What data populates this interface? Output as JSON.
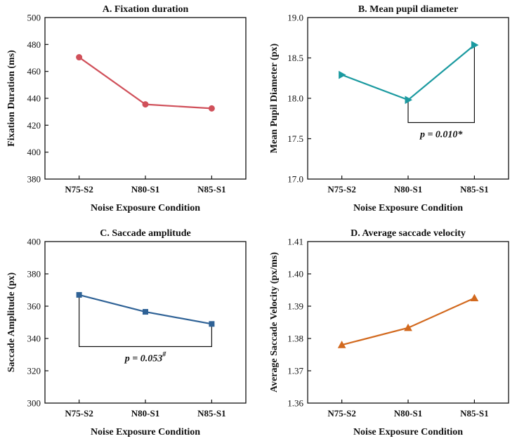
{
  "figure": {
    "xlabel": "Noise Exposure Condition"
  },
  "chart_data": [
    {
      "id": "A",
      "type": "line",
      "title": "A. Fixation duration",
      "xlabel": "Noise Exposure Condition",
      "ylabel": "Fixation Duration (ms)",
      "categories": [
        "N75-S2",
        "N80-S1",
        "N85-S1"
      ],
      "values": [
        470.5,
        435.5,
        432.5
      ],
      "ylim": [
        380,
        500
      ],
      "yticks": [
        "380",
        "400",
        "420",
        "440",
        "460",
        "480",
        "500"
      ],
      "color": "#d0505a",
      "marker": "circle",
      "annotation": null
    },
    {
      "id": "B",
      "type": "line",
      "title": "B. Mean pupil diameter",
      "xlabel": "Noise Exposure Condition",
      "ylabel": "Mean Pupil Diameter (px)",
      "categories": [
        "N75-S2",
        "N80-S1",
        "N85-S1"
      ],
      "values": [
        18.29,
        17.98,
        18.66
      ],
      "ylim": [
        17.0,
        19.0
      ],
      "yticks": [
        "17.0",
        "17.5",
        "18.0",
        "18.5",
        "19.0"
      ],
      "color": "#1b9aa0",
      "marker": "triangle-right",
      "annotation": {
        "label": "p = 0.010*",
        "from": 1,
        "to": 2,
        "level": 17.7
      }
    },
    {
      "id": "C",
      "type": "line",
      "title": "C. Saccade amplitude",
      "xlabel": "Noise Exposure Condition",
      "ylabel": "Saccade Amplitude (px)",
      "categories": [
        "N75-S2",
        "N80-S1",
        "N85-S1"
      ],
      "values": [
        367,
        356.5,
        349
      ],
      "ylim": [
        300,
        400
      ],
      "yticks": [
        "300",
        "320",
        "340",
        "360",
        "380",
        "400"
      ],
      "color": "#2f6296",
      "marker": "square",
      "annotation": {
        "label": "p = 0.053",
        "sup": "#",
        "from": 0,
        "to": 2,
        "level": 335
      }
    },
    {
      "id": "D",
      "type": "line",
      "title": "D. Average saccade velocity",
      "xlabel": "Noise Exposure Condition",
      "ylabel": "Average Saccade Velocity (px/ms)",
      "categories": [
        "N75-S2",
        "N80-S1",
        "N85-S1"
      ],
      "values": [
        1.378,
        1.3833,
        1.3925
      ],
      "ylim": [
        1.36,
        1.41
      ],
      "yticks": [
        "1.36",
        "1.37",
        "1.38",
        "1.39",
        "1.40",
        "1.41"
      ],
      "color": "#d2691e",
      "marker": "triangle-up",
      "annotation": null
    }
  ]
}
